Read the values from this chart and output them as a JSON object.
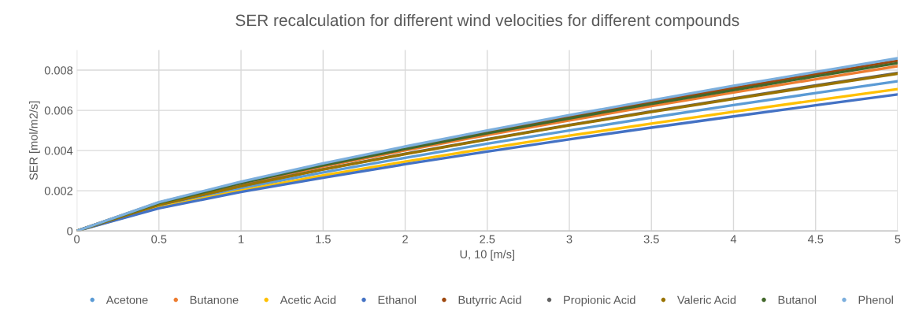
{
  "chart_data": {
    "type": "line",
    "title": "SER recalculation for different wind velocities for different compounds",
    "xlabel": "U, 10 [m/s]",
    "ylabel": "SER [mol/m2/s]",
    "x": [
      0,
      0.5,
      1,
      1.5,
      2,
      2.5,
      3,
      3.5,
      4,
      4.5,
      5
    ],
    "series": [
      {
        "name": "Acetone",
        "color": "#5b9bd5",
        "values": [
          0,
          0.00124,
          0.00212,
          0.00291,
          0.00364,
          0.00434,
          0.005,
          0.00564,
          0.00626,
          0.00686,
          0.00745
        ]
      },
      {
        "name": "Butanone",
        "color": "#ed7d31",
        "values": [
          0,
          0.00136,
          0.00234,
          0.00321,
          0.00401,
          0.00477,
          0.0055,
          0.00621,
          0.00689,
          0.00755,
          0.0082
        ]
      },
      {
        "name": "Acetic Acid",
        "color": "#ffc000",
        "values": [
          0,
          0.00117,
          0.00201,
          0.00276,
          0.00345,
          0.00411,
          0.00474,
          0.00534,
          0.00593,
          0.0065,
          0.00706
        ]
      },
      {
        "name": "Ethanol",
        "color": "#4472c4",
        "values": [
          0,
          0.00113,
          0.00194,
          0.00265,
          0.00332,
          0.00395,
          0.00456,
          0.00514,
          0.0057,
          0.00625,
          0.00679
        ]
      },
      {
        "name": "Butyrric Acid",
        "color": "#9e480e",
        "values": [
          0,
          0.00141,
          0.00241,
          0.00331,
          0.00414,
          0.00493,
          0.00568,
          0.00641,
          0.00711,
          0.0078,
          0.00847
        ]
      },
      {
        "name": "Propionic Acid",
        "color": "#636363",
        "values": [
          0,
          0.0013,
          0.00224,
          0.00307,
          0.00384,
          0.00457,
          0.00527,
          0.00595,
          0.0066,
          0.00724,
          0.00786
        ]
      },
      {
        "name": "Valeric Acid",
        "color": "#997300",
        "values": [
          0,
          0.0013,
          0.00223,
          0.00306,
          0.00382,
          0.00455,
          0.00525,
          0.00592,
          0.00657,
          0.0072,
          0.00782
        ]
      },
      {
        "name": "Butanol",
        "color": "#43682b",
        "values": [
          0,
          0.00139,
          0.00238,
          0.00326,
          0.00408,
          0.00486,
          0.0056,
          0.00632,
          0.00701,
          0.00769,
          0.00835
        ]
      },
      {
        "name": "Phenol",
        "color": "#7cafdd",
        "values": [
          0,
          0.00143,
          0.00245,
          0.00336,
          0.0042,
          0.005,
          0.00576,
          0.0065,
          0.00722,
          0.00791,
          0.00859
        ]
      }
    ],
    "xlim": [
      0,
      5
    ],
    "xticks": [
      0,
      0.5,
      1,
      1.5,
      2,
      2.5,
      3,
      3.5,
      4,
      4.5,
      5
    ],
    "ylim": [
      0,
      0.009
    ],
    "yticks": [
      0,
      0.002,
      0.004,
      0.006,
      0.008
    ],
    "grid": true,
    "legend": "bottom"
  }
}
